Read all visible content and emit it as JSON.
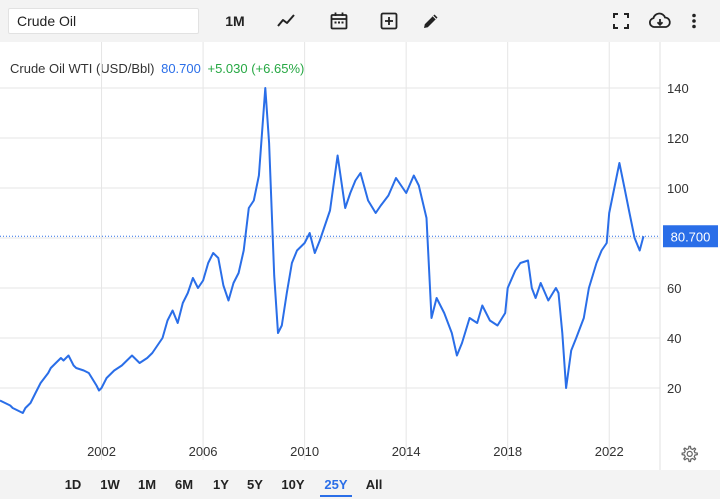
{
  "toolbar": {
    "search_value": "Crude Oil",
    "period": "1M",
    "icons": [
      "line-chart-icon",
      "calendar-icon",
      "add-box-icon",
      "pencil-icon",
      "fullscreen-icon",
      "cloud-download-icon",
      "more-vert-icon"
    ]
  },
  "header": {
    "name": "Crude Oil WTI (USD/Bbl)",
    "price": "80.700",
    "change": "+5.030 (+6.65%)"
  },
  "colors": {
    "line": "#2a6ee8",
    "positive": "#27a844",
    "grid": "#e6e6e6"
  },
  "ranges": [
    "1D",
    "1W",
    "1M",
    "6M",
    "1Y",
    "5Y",
    "10Y",
    "25Y",
    "All"
  ],
  "active_range": "25Y",
  "chart_data": {
    "type": "line",
    "title": "",
    "xlabel": "",
    "ylabel": "",
    "xlim": [
      1998.0,
      2024.0
    ],
    "ylim": [
      0,
      150
    ],
    "x_ticks": [
      2002,
      2006,
      2010,
      2014,
      2018,
      2022
    ],
    "x_tick_labels": [
      "2002",
      "2006",
      "2010",
      "2014",
      "2018",
      "2022"
    ],
    "y_ticks": [
      20,
      40,
      60,
      80,
      100,
      120,
      140
    ],
    "y_tick_labels": [
      "20",
      "40",
      "60",
      "80",
      "100",
      "120",
      "140"
    ],
    "grid": true,
    "last_value_label": "80.700",
    "last_value": 80.7,
    "series": [
      {
        "x": [
          1998.0,
          1998.2,
          1998.4,
          1998.5,
          1998.7,
          1998.9,
          1999.0,
          1999.2,
          1999.4,
          1999.6,
          1999.9,
          2000.0,
          2000.2,
          2000.4,
          2000.5,
          2000.7,
          2000.9,
          2001.0,
          2001.3,
          2001.5,
          2001.8,
          2001.9,
          2002.0,
          2002.2,
          2002.5,
          2002.8,
          2003.0,
          2003.2,
          2003.5,
          2003.8,
          2004.0,
          2004.2,
          2004.4,
          2004.6,
          2004.8,
          2005.0,
          2005.2,
          2005.4,
          2005.6,
          2005.8,
          2006.0,
          2006.2,
          2006.4,
          2006.6,
          2006.8,
          2007.0,
          2007.2,
          2007.4,
          2007.6,
          2007.8,
          2008.0,
          2008.2,
          2008.45,
          2008.6,
          2008.8,
          2008.95,
          2009.1,
          2009.3,
          2009.5,
          2009.7,
          2010.0,
          2010.2,
          2010.4,
          2010.6,
          2010.8,
          2011.0,
          2011.3,
          2011.6,
          2011.8,
          2012.0,
          2012.2,
          2012.5,
          2012.8,
          2013.0,
          2013.3,
          2013.6,
          2013.8,
          2014.0,
          2014.3,
          2014.5,
          2014.8,
          2015.0,
          2015.2,
          2015.5,
          2015.8,
          2016.0,
          2016.2,
          2016.5,
          2016.8,
          2017.0,
          2017.3,
          2017.6,
          2017.9,
          2018.0,
          2018.3,
          2018.5,
          2018.8,
          2018.95,
          2019.1,
          2019.3,
          2019.6,
          2019.9,
          2020.0,
          2020.15,
          2020.3,
          2020.5,
          2020.7,
          2021.0,
          2021.2,
          2021.5,
          2021.7,
          2021.9,
          2022.0,
          2022.2,
          2022.4,
          2022.6,
          2022.8,
          2023.0,
          2023.2,
          2023.35
        ],
        "y": [
          15,
          14,
          13,
          12,
          11,
          10,
          12,
          14,
          18,
          22,
          26,
          28,
          30,
          32,
          31,
          33,
          29,
          28,
          27,
          26,
          21,
          19,
          20,
          24,
          27,
          29,
          31,
          33,
          30,
          32,
          34,
          37,
          40,
          47,
          51,
          46,
          54,
          58,
          64,
          60,
          63,
          70,
          74,
          72,
          61,
          55,
          62,
          66,
          75,
          92,
          95,
          105,
          140,
          118,
          65,
          42,
          45,
          58,
          70,
          75,
          78,
          82,
          74,
          79,
          85,
          91,
          113,
          92,
          98,
          103,
          106,
          95,
          90,
          93,
          97,
          104,
          101,
          98,
          105,
          101,
          88,
          48,
          56,
          50,
          42,
          33,
          38,
          48,
          46,
          53,
          47,
          45,
          50,
          60,
          67,
          70,
          71,
          60,
          56,
          62,
          55,
          60,
          58,
          42,
          20,
          35,
          40,
          48,
          60,
          70,
          75,
          78,
          90,
          100,
          110,
          100,
          90,
          80,
          75,
          80.7
        ]
      }
    ]
  }
}
